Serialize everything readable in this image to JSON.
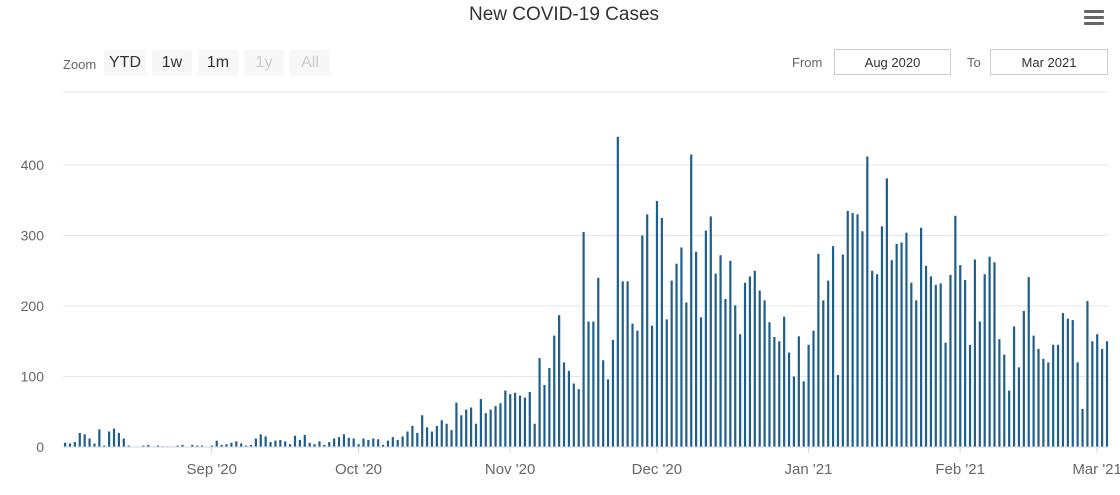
{
  "title": "New COVID-19 Cases",
  "menu_icon": "hamburger-menu-icon",
  "zoom": {
    "label": "Zoom",
    "buttons": [
      {
        "label": "YTD",
        "enabled": true
      },
      {
        "label": "1w",
        "enabled": true
      },
      {
        "label": "1m",
        "enabled": true
      },
      {
        "label": "1y",
        "enabled": false
      },
      {
        "label": "All",
        "enabled": false
      }
    ]
  },
  "range": {
    "from_label": "From",
    "from_value": "Aug 2020",
    "to_label": "To",
    "to_value": "Mar 2021"
  },
  "colors": {
    "bar": "#1f5f8b",
    "grid": "#e6e6e6",
    "axis_text": "#666666"
  },
  "chart_data": {
    "type": "bar",
    "title": "New COVID-19 Cases",
    "start_date": "2020-08-02",
    "end_date": "2021-03-02",
    "ylim": [
      0,
      440
    ],
    "y_ticks": [
      0,
      100,
      200,
      300,
      400
    ],
    "y_tick_labels": [
      "0",
      "100",
      "200",
      "300",
      "400"
    ],
    "x_tick_labels": [
      {
        "label": "Sep '20",
        "date": "2020-09-01"
      },
      {
        "label": "Oct '20",
        "date": "2020-10-01"
      },
      {
        "label": "Nov '20",
        "date": "2020-11-01"
      },
      {
        "label": "Dec '20",
        "date": "2020-12-01"
      },
      {
        "label": "Jan '21",
        "date": "2021-01-01"
      },
      {
        "label": "Feb '21",
        "date": "2021-02-01"
      },
      {
        "label": "Mar '21",
        "date": "2021-03-01"
      }
    ],
    "values": [
      6,
      5,
      7,
      20,
      18,
      12,
      5,
      25,
      2,
      22,
      26,
      20,
      12,
      2,
      0,
      0,
      2,
      3,
      0,
      2,
      1,
      1,
      0,
      2,
      3,
      0,
      3,
      2,
      2,
      0,
      2,
      9,
      3,
      4,
      6,
      8,
      5,
      2,
      3,
      12,
      18,
      15,
      7,
      9,
      10,
      8,
      4,
      16,
      10,
      17,
      6,
      4,
      8,
      3,
      7,
      12,
      14,
      18,
      13,
      12,
      4,
      12,
      10,
      12,
      11,
      3,
      9,
      14,
      10,
      15,
      22,
      30,
      20,
      45,
      28,
      22,
      30,
      38,
      33,
      24,
      63,
      45,
      53,
      56,
      33,
      68,
      48,
      53,
      58,
      62,
      80,
      75,
      77,
      73,
      70,
      78,
      33,
      126,
      88,
      112,
      158,
      187,
      120,
      108,
      90,
      82,
      305,
      178,
      178,
      240,
      123,
      96,
      152,
      440,
      235,
      235,
      175,
      165,
      300,
      330,
      172,
      349,
      325,
      181,
      236,
      260,
      283,
      205,
      415,
      277,
      184,
      307,
      327,
      246,
      272,
      210,
      264,
      201,
      160,
      233,
      242,
      250,
      222,
      208,
      177,
      156,
      150,
      185,
      134,
      100,
      157,
      93,
      145,
      165,
      274,
      208,
      236,
      285,
      102,
      273,
      335,
      332,
      330,
      306,
      412,
      250,
      245,
      313,
      381,
      265,
      288,
      290,
      304,
      233,
      208,
      311,
      257,
      242,
      230,
      232,
      148,
      244,
      328,
      258,
      237,
      145,
      266,
      178,
      245,
      270,
      262,
      153,
      131,
      80,
      171,
      113,
      193,
      241,
      158,
      139,
      125,
      120,
      145,
      145,
      190,
      182,
      180,
      120,
      54,
      207,
      150,
      160,
      139,
      150
    ]
  }
}
